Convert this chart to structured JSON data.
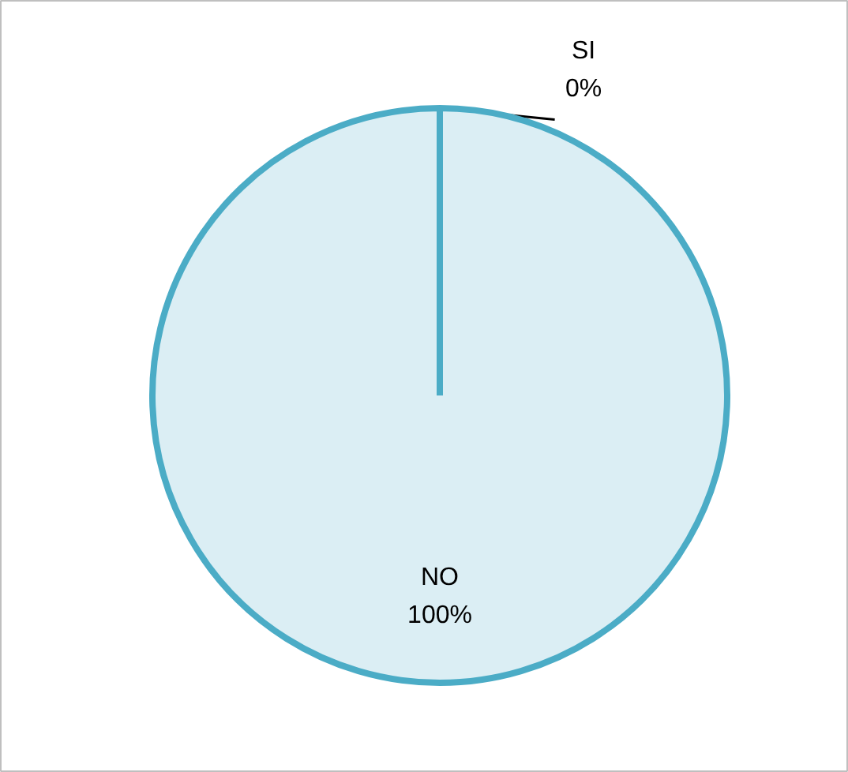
{
  "chart_data": {
    "type": "pie",
    "categories": [
      "SI",
      "NO"
    ],
    "values": [
      0,
      100
    ],
    "colors": [
      "#dbeef4",
      "#dbeef4"
    ],
    "value_labels": [
      "0%",
      "100%"
    ]
  }
}
